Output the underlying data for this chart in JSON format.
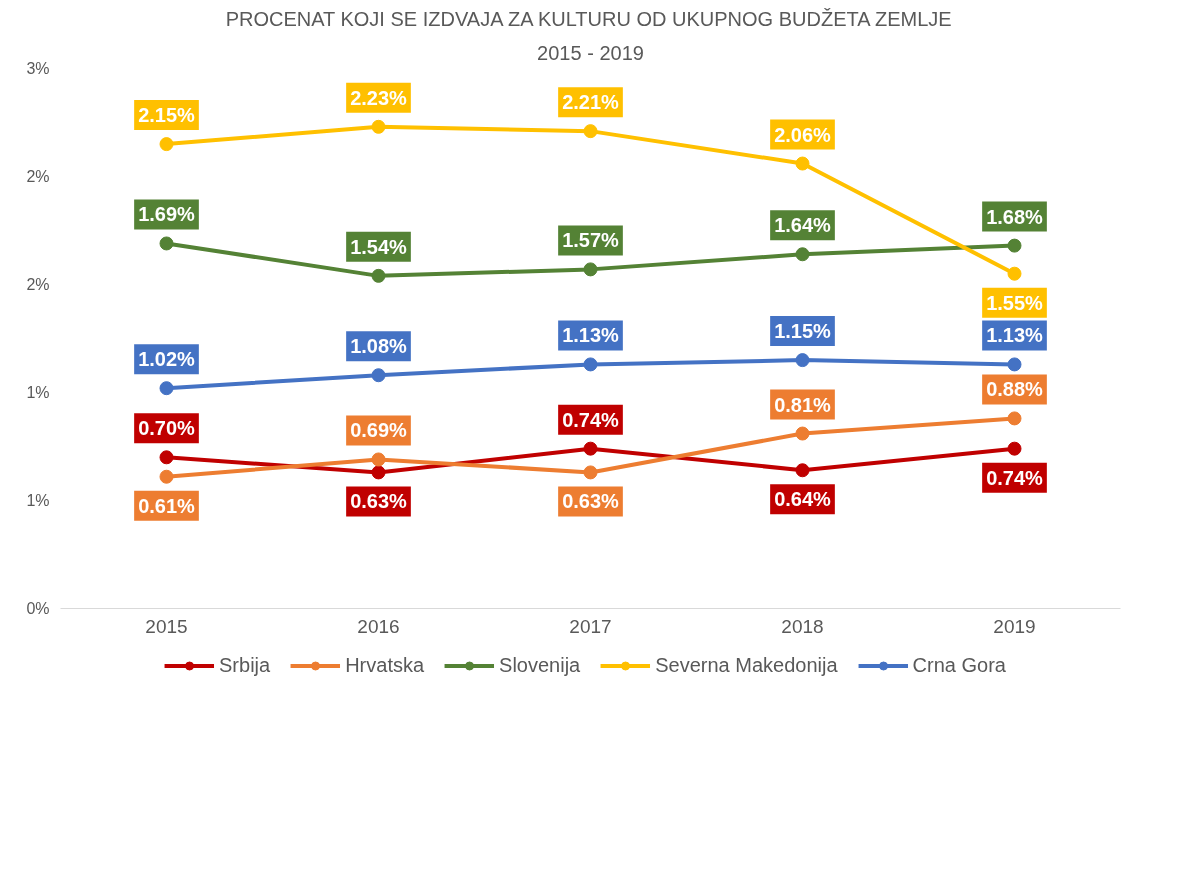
{
  "chart_data": {
    "type": "line",
    "title": "PROCENAT KOJI SE IZDVAJA ZA KULTURU OD UKUPNOG BUDŽETA ZEMLJE",
    "subtitle": "2015 - 2019",
    "categories": [
      "2015",
      "2016",
      "2017",
      "2018",
      "2019"
    ],
    "ylim": [
      0,
      2.5
    ],
    "yticks": [
      {
        "value": 0,
        "label": "0%"
      },
      {
        "value": 0.5,
        "label": "1%"
      },
      {
        "value": 1,
        "label": "1%"
      },
      {
        "value": 1.5,
        "label": "2%"
      },
      {
        "value": 2,
        "label": "2%"
      },
      {
        "value": 2.5,
        "label": "3%"
      }
    ],
    "grid": false,
    "legend": "bottom",
    "marker": "circle",
    "line_style": "solid",
    "series": [
      {
        "name": "Srbija",
        "color": "#c00000",
        "values": [
          0.7,
          0.63,
          0.74,
          0.64,
          0.74
        ],
        "value_labels": [
          "0.70%",
          "0.63%",
          "0.74%",
          "0.64%",
          "0.74%"
        ]
      },
      {
        "name": "Hrvatska",
        "color": "#ed7d31",
        "values": [
          0.61,
          0.69,
          0.63,
          0.81,
          0.88
        ],
        "value_labels": [
          "0.61%",
          "0.69%",
          "0.63%",
          "0.81%",
          "0.88%"
        ]
      },
      {
        "name": "Slovenija",
        "color": "#548235",
        "values": [
          1.69,
          1.54,
          1.57,
          1.64,
          1.68
        ],
        "value_labels": [
          "1.69%",
          "1.54%",
          "1.57%",
          "1.64%",
          "1.68%"
        ]
      },
      {
        "name": "Severna Makedonija",
        "color": "#ffc000",
        "values": [
          2.15,
          2.23,
          2.21,
          2.06,
          1.55
        ],
        "value_labels": [
          "2.15%",
          "2.23%",
          "2.21%",
          "2.06%",
          "1.55%"
        ]
      },
      {
        "name": "Crna Gora",
        "color": "#4472c4",
        "values": [
          1.02,
          1.08,
          1.13,
          1.15,
          1.13
        ],
        "value_labels": [
          "1.02%",
          "1.08%",
          "1.13%",
          "1.15%",
          "1.13%"
        ]
      }
    ]
  }
}
